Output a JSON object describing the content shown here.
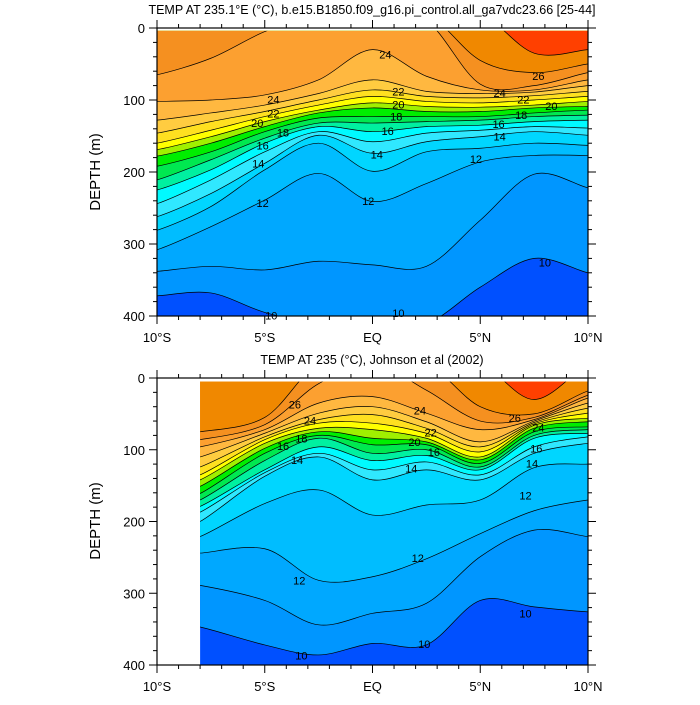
{
  "chart_data": [
    {
      "type": "contour",
      "title": "TEMP AT 235.1°E (°C), b.e15.B1850.f09_g16.pi_control.all_ga7vdc23.66 [25-44]",
      "xlabel": "",
      "ylabel": "DEPTH (m)",
      "xlim": [
        -10,
        10
      ],
      "ylim": [
        0,
        400
      ],
      "y_inverted": true,
      "data_extent": {
        "lat": [
          -10,
          10
        ],
        "depth": [
          4,
          400
        ]
      },
      "x_ticks": [
        {
          "value": -10,
          "label": "10°S"
        },
        {
          "value": -5,
          "label": "5°S"
        },
        {
          "value": 0,
          "label": "EQ"
        },
        {
          "value": 5,
          "label": "5°N"
        },
        {
          "value": 10,
          "label": "10°N"
        }
      ],
      "y_ticks": [
        {
          "value": 0,
          "label": "0"
        },
        {
          "value": 100,
          "label": "100"
        },
        {
          "value": 200,
          "label": "200"
        },
        {
          "value": 300,
          "label": "300"
        },
        {
          "value": 400,
          "label": "400"
        }
      ],
      "lat": [
        -10,
        -7.5,
        -5,
        -2.5,
        0,
        2.5,
        5,
        7.5,
        10
      ],
      "isotherm_depths": {
        "10": [
          372,
          368,
          395,
          410,
          405,
          410,
          360,
          320,
          340
        ],
        "11": [
          338,
          331,
          336,
          324,
          329,
          331,
          267,
          203,
          222
        ],
        "12": [
          308,
          276,
          239,
          202,
          241,
          216,
          186,
          177,
          177
        ],
        "13": [
          281,
          248,
          197,
          160,
          199,
          172,
          167,
          160,
          163
        ],
        "14": [
          262,
          230,
          188,
          149,
          174,
          158,
          151,
          144,
          149
        ],
        "15": [
          244,
          211,
          172,
          144,
          158,
          146,
          142,
          137,
          139
        ],
        "16": [
          225,
          197,
          160,
          137,
          144,
          137,
          135,
          130,
          128
        ],
        "17": [
          211,
          183,
          153,
          132,
          132,
          130,
          128,
          123,
          121
        ],
        "18": [
          192,
          172,
          144,
          125,
          123,
          123,
          123,
          118,
          114
        ],
        "19": [
          178,
          160,
          137,
          118,
          111,
          116,
          116,
          111,
          109
        ],
        "20": [
          169,
          151,
          130,
          114,
          104,
          109,
          110,
          107,
          102
        ],
        "21": [
          160,
          142,
          123,
          107,
          95,
          102,
          104,
          100,
          95
        ],
        "22": [
          146,
          130,
          116,
          100,
          86,
          95,
          97,
          94,
          88
        ],
        "23": [
          128,
          118,
          107,
          91,
          72,
          88,
          91,
          89,
          80
        ],
        "24": [
          102,
          100,
          93,
          72,
          30,
          67,
          86,
          86,
          72
        ],
        "25": [
          65,
          42,
          5,
          -20,
          -20,
          -10,
          78,
          80,
          62
        ],
        "26": [
          -20,
          -20,
          -20,
          -20,
          -20,
          -20,
          45,
          62,
          50
        ],
        "27": [
          -20,
          -20,
          -20,
          -20,
          -20,
          -20,
          -20,
          35,
          30
        ]
      },
      "contour_labels": [
        {
          "text": "24",
          "lat": -4.6,
          "depth": 99
        },
        {
          "text": "22",
          "lat": -4.6,
          "depth": 119
        },
        {
          "text": "20",
          "lat": -4.7,
          "depth": 132
        },
        {
          "text": "18",
          "lat": -4.8,
          "depth": 145
        },
        {
          "text": "16",
          "lat": -5.1,
          "depth": 163
        },
        {
          "text": "14",
          "lat": -5.3,
          "depth": 188
        },
        {
          "text": "12",
          "lat": -5.1,
          "depth": 243
        },
        {
          "text": "10",
          "lat": -4.7,
          "depth": 399
        },
        {
          "text": "24",
          "lat": 0.6,
          "depth": 37
        },
        {
          "text": "22",
          "lat": 1.2,
          "depth": 88
        },
        {
          "text": "20",
          "lat": 1.2,
          "depth": 106
        },
        {
          "text": "18",
          "lat": 1.1,
          "depth": 123
        },
        {
          "text": "16",
          "lat": 0.7,
          "depth": 143
        },
        {
          "text": "14",
          "lat": 0.2,
          "depth": 176
        },
        {
          "text": "12",
          "lat": -0.2,
          "depth": 240
        },
        {
          "text": "10",
          "lat": 1.2,
          "depth": 396
        },
        {
          "text": "26",
          "lat": 7.7,
          "depth": 67
        },
        {
          "text": "24",
          "lat": 5.9,
          "depth": 90
        },
        {
          "text": "22",
          "lat": 7.0,
          "depth": 99
        },
        {
          "text": "20",
          "lat": 7.0,
          "depth": 108
        },
        {
          "text": "18",
          "lat": 6.9,
          "depth": 121
        },
        {
          "text": "16",
          "lat": 6.5,
          "depth": 133
        },
        {
          "text": "14",
          "lat": 5.9,
          "depth": 151
        },
        {
          "text": "12",
          "lat": 4.8,
          "depth": 182
        },
        {
          "text": "10",
          "lat": 8.0,
          "depth": 326
        }
      ]
    },
    {
      "type": "contour",
      "title": "TEMP AT 235 (°C), Johnson et al (2002)",
      "xlabel": "",
      "ylabel": "DEPTH (m)",
      "xlim": [
        -10,
        10
      ],
      "ylim": [
        0,
        400
      ],
      "y_inverted": true,
      "data_extent": {
        "lat": [
          -8,
          10
        ],
        "depth": [
          5,
          400
        ]
      },
      "x_ticks": [
        {
          "value": -10,
          "label": "10°S"
        },
        {
          "value": -5,
          "label": "5°S"
        },
        {
          "value": 0,
          "label": "EQ"
        },
        {
          "value": 5,
          "label": "5°N"
        },
        {
          "value": 10,
          "label": "10°N"
        }
      ],
      "y_ticks": [
        {
          "value": 0,
          "label": "0"
        },
        {
          "value": 100,
          "label": "100"
        },
        {
          "value": 200,
          "label": "200"
        },
        {
          "value": 300,
          "label": "300"
        },
        {
          "value": 400,
          "label": "400"
        }
      ],
      "lat": [
        -8,
        -5,
        -2.5,
        0,
        2.5,
        5,
        7.5,
        10
      ],
      "isotherm_depths": {
        "10": [
          347,
          372,
          386,
          370,
          372,
          310,
          319,
          326
        ],
        "11": [
          289,
          310,
          344,
          328,
          314,
          249,
          212,
          221
        ],
        "12": [
          244,
          238,
          282,
          277,
          252,
          217,
          185,
          170
        ],
        "13": [
          221,
          175,
          156,
          191,
          177,
          170,
          125,
          120
        ],
        "14": [
          200,
          137,
          110,
          142,
          128,
          142,
          105,
          91
        ],
        "15": [
          187,
          132,
          105,
          128,
          117,
          135,
          96,
          82
        ],
        "16": [
          179,
          128,
          96,
          115,
          108,
          128,
          84,
          77
        ],
        "17": [
          170,
          115,
          84,
          105,
          100,
          124,
          80,
          72
        ],
        "18": [
          161,
          105,
          80,
          93,
          93,
          119,
          75,
          68
        ],
        "19": [
          151,
          98,
          75,
          84,
          89,
          114,
          70,
          61
        ],
        "20": [
          142,
          91,
          70,
          72,
          84,
          110,
          66,
          56
        ],
        "21": [
          135,
          86,
          63,
          63,
          77,
          103,
          64,
          49
        ],
        "22": [
          124,
          82,
          58,
          51,
          70,
          96,
          62,
          42
        ],
        "23": [
          110,
          77,
          49,
          40,
          61,
          89,
          60,
          35
        ],
        "24": [
          96,
          72,
          35,
          26,
          49,
          72,
          58,
          28
        ],
        "25": [
          86,
          65,
          8,
          -20,
          17,
          60,
          55,
          24
        ],
        "26": [
          75,
          55,
          -20,
          -20,
          -20,
          40,
          50,
          18
        ],
        "27": [
          -20,
          -20,
          -20,
          -20,
          -20,
          -20,
          30,
          -20
        ]
      },
      "contour_labels": [
        {
          "text": "26",
          "lat": -3.6,
          "depth": 37
        },
        {
          "text": "24",
          "lat": -2.9,
          "depth": 59
        },
        {
          "text": "18",
          "lat": -3.3,
          "depth": 84
        },
        {
          "text": "16",
          "lat": -3.5,
          "depth": 95
        },
        {
          "text": "14",
          "lat": -3.5,
          "depth": 114
        },
        {
          "text": "12",
          "lat": -3.4,
          "depth": 282
        },
        {
          "text": "10",
          "lat": -3.3,
          "depth": 387
        },
        {
          "text": "24",
          "lat": 2.2,
          "depth": 45
        },
        {
          "text": "22",
          "lat": 2.7,
          "depth": 76
        },
        {
          "text": "20",
          "lat": 2.6,
          "depth": 89
        },
        {
          "text": "16",
          "lat": 2.2,
          "depth": 103
        },
        {
          "text": "14",
          "lat": 1.8,
          "depth": 126
        },
        {
          "text": "12",
          "lat": 2.1,
          "depth": 251
        },
        {
          "text": "10",
          "lat": 2.4,
          "depth": 371
        },
        {
          "text": "26",
          "lat": 6.6,
          "depth": 56
        },
        {
          "text": "24",
          "lat": 7.7,
          "depth": 69
        },
        {
          "text": "16",
          "lat": 7.6,
          "depth": 98
        },
        {
          "text": "14",
          "lat": 7.4,
          "depth": 119
        },
        {
          "text": "12",
          "lat": 7.1,
          "depth": 164
        },
        {
          "text": "10",
          "lat": 7.1,
          "depth": 328
        }
      ]
    }
  ],
  "band_colors": {
    "below": "#0050ff",
    "10": "#0096ff",
    "11": "#00a8ff",
    "12": "#00bdff",
    "13": "#00d6ff",
    "14": "#30e8ff",
    "15": "#00faff",
    "16": "#00f0a0",
    "17": "#00e850",
    "18": "#00ee00",
    "19": "#a0f000",
    "20": "#ffff00",
    "21": "#ffe020",
    "22": "#ffcc40",
    "23": "#ffb840",
    "24": "#fca030",
    "25": "#f59020",
    "26": "#f08800",
    "27": "#ff4000"
  }
}
